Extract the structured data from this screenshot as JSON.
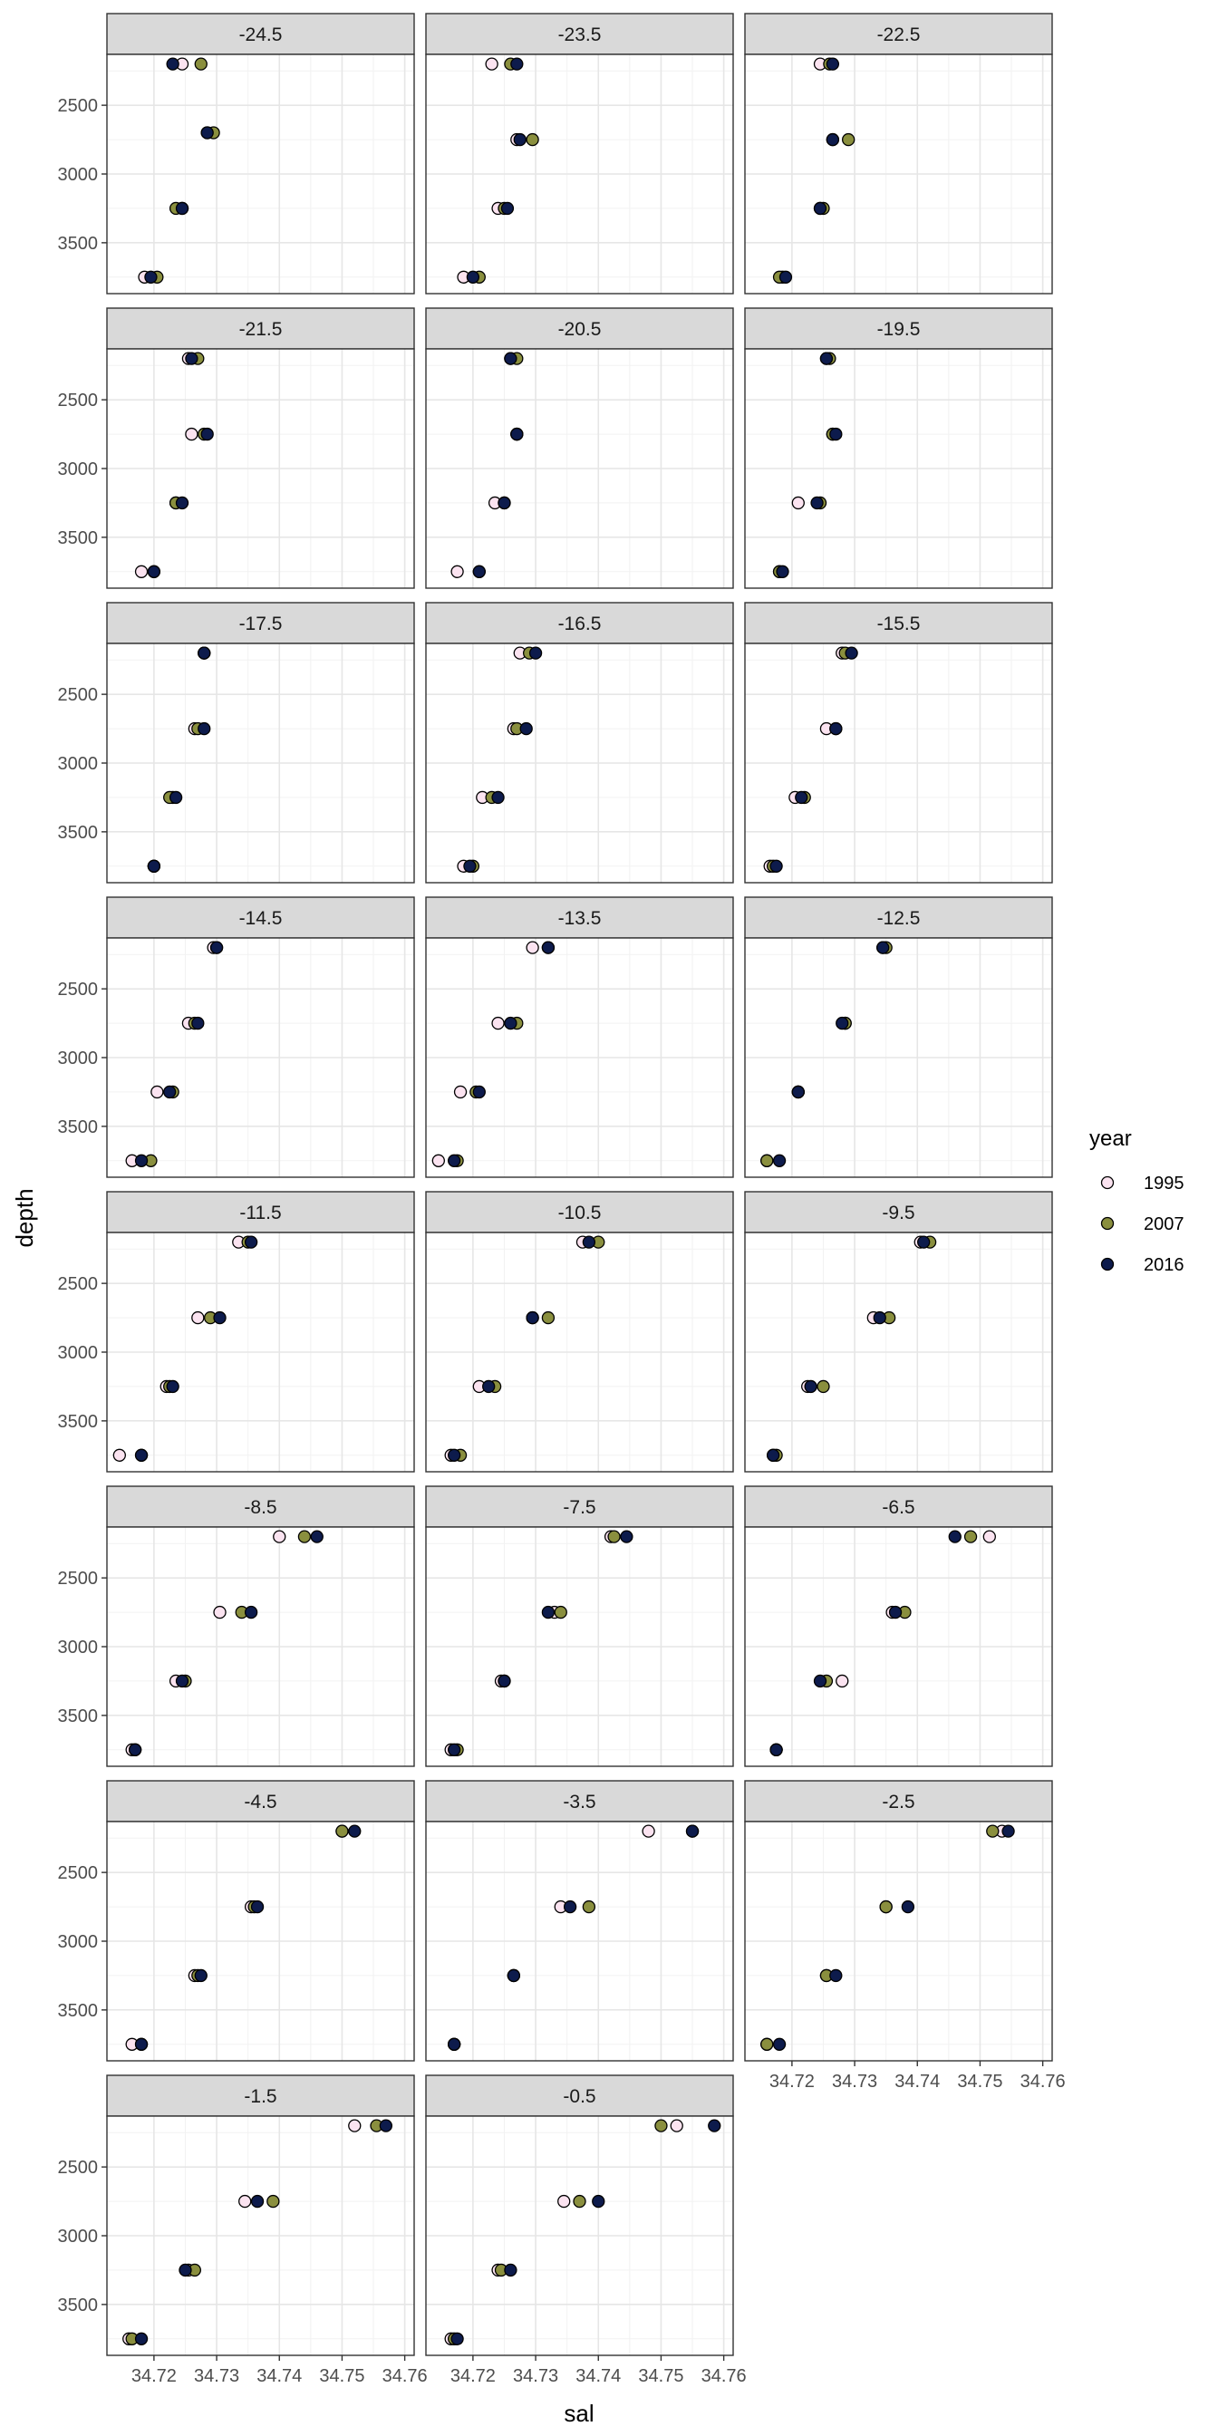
{
  "chart_data": {
    "type": "scatter",
    "layout": "facet_wrap",
    "ncol": 3,
    "xlabel": "sal",
    "ylabel": "depth",
    "xlim": [
      34.7125,
      34.7615
    ],
    "ylim": [
      3870,
      2130
    ],
    "y_reversed": true,
    "x_ticks": [
      34.72,
      34.73,
      34.74,
      34.75,
      34.76
    ],
    "y_ticks": [
      2500,
      3000,
      3500
    ],
    "grid": true,
    "legend": {
      "title": "year",
      "position": "right",
      "entries": [
        {
          "name": "1995",
          "color": "#fbe3f0"
        },
        {
          "name": "2007",
          "color": "#8a8f3e"
        },
        {
          "name": "2016",
          "color": "#0d1b4c"
        }
      ]
    },
    "series_order": [
      "1995",
      "2007",
      "2016"
    ],
    "panels": [
      {
        "title": "-24.5",
        "depths": [
          2200,
          2700,
          3250,
          3750
        ],
        "sal": {
          "1995": [
            34.7245,
            34.7285,
            34.7245,
            34.7185
          ],
          "2007": [
            34.7275,
            34.7295,
            34.7235,
            34.7205
          ],
          "2016": [
            34.723,
            34.7285,
            34.7245,
            34.7195
          ]
        }
      },
      {
        "title": "-23.5",
        "depths": [
          2200,
          2750,
          3250,
          3750
        ],
        "sal": {
          "1995": [
            34.723,
            34.727,
            34.724,
            34.7185
          ],
          "2007": [
            34.726,
            34.7295,
            34.725,
            34.721
          ],
          "2016": [
            34.727,
            34.7275,
            34.7255,
            34.72
          ]
        }
      },
      {
        "title": "-22.5",
        "depths": [
          2200,
          2750,
          3250,
          3750
        ],
        "sal": {
          "1995": [
            34.7245,
            34.7265,
            34.7245,
            34.7185
          ],
          "2007": [
            34.726,
            34.729,
            34.725,
            34.718
          ],
          "2016": [
            34.7265,
            34.7265,
            34.7245,
            34.719
          ]
        }
      },
      {
        "title": "-21.5",
        "depths": [
          2200,
          2750,
          3250,
          3750
        ],
        "sal": {
          "1995": [
            34.7255,
            34.726,
            34.7235,
            34.718
          ],
          "2007": [
            34.727,
            34.728,
            34.7235,
            34.72
          ],
          "2016": [
            34.726,
            34.7285,
            34.7245,
            34.72
          ]
        }
      },
      {
        "title": "-20.5",
        "depths": [
          2200,
          2750,
          3250,
          3750
        ],
        "sal": {
          "1995": [
            34.726,
            34.727,
            34.7235,
            34.7175
          ],
          "2007": [
            34.727,
            34.727,
            34.725,
            34.721
          ],
          "2016": [
            34.726,
            34.727,
            34.725,
            34.721
          ]
        }
      },
      {
        "title": "-19.5",
        "depths": [
          2200,
          2750,
          3250,
          3750
        ],
        "sal": {
          "1995": [
            34.7255,
            34.7265,
            34.721,
            34.718
          ],
          "2007": [
            34.726,
            34.7265,
            34.7245,
            34.718
          ],
          "2016": [
            34.7255,
            34.727,
            34.724,
            34.7185
          ]
        }
      },
      {
        "title": "-17.5",
        "depths": [
          2200,
          2750,
          3250,
          3750
        ],
        "sal": {
          "1995": [
            34.728,
            34.7265,
            34.723,
            34.72
          ],
          "2007": [
            34.728,
            34.727,
            34.7225,
            34.72
          ],
          "2016": [
            34.728,
            34.728,
            34.7235,
            34.72
          ]
        }
      },
      {
        "title": "-16.5",
        "depths": [
          2200,
          2750,
          3250,
          3750
        ],
        "sal": {
          "1995": [
            34.7275,
            34.7265,
            34.7215,
            34.7185
          ],
          "2007": [
            34.729,
            34.727,
            34.723,
            34.72
          ],
          "2016": [
            34.73,
            34.7285,
            34.724,
            34.7195
          ]
        }
      },
      {
        "title": "-15.5",
        "depths": [
          2200,
          2750,
          3250,
          3750
        ],
        "sal": {
          "1995": [
            34.728,
            34.7255,
            34.7205,
            34.7165
          ],
          "2007": [
            34.7285,
            34.727,
            34.722,
            34.717
          ],
          "2016": [
            34.7295,
            34.727,
            34.7215,
            34.7175
          ]
        }
      },
      {
        "title": "-14.5",
        "depths": [
          2200,
          2750,
          3250,
          3750
        ],
        "sal": {
          "1995": [
            34.7295,
            34.7255,
            34.7205,
            34.7165
          ],
          "2007": [
            34.73,
            34.7265,
            34.723,
            34.7195
          ],
          "2016": [
            34.73,
            34.727,
            34.7225,
            34.718
          ]
        }
      },
      {
        "title": "-13.5",
        "depths": [
          2200,
          2750,
          3250,
          3750
        ],
        "sal": {
          "1995": [
            34.7295,
            34.724,
            34.718,
            34.7145
          ],
          "2007": [
            34.732,
            34.727,
            34.7205,
            34.7175
          ],
          "2016": [
            34.732,
            34.726,
            34.721,
            34.717
          ]
        }
      },
      {
        "title": "-12.5",
        "depths": [
          2200,
          2750,
          3250,
          3750
        ],
        "sal": {
          "1995": [
            34.7345,
            34.7285,
            34.721,
            34.716
          ],
          "2007": [
            34.735,
            34.7285,
            34.721,
            34.716
          ],
          "2016": [
            34.7345,
            34.728,
            34.721,
            34.718
          ]
        }
      },
      {
        "title": "-11.5",
        "depths": [
          2200,
          2750,
          3250,
          3750
        ],
        "sal": {
          "1995": [
            34.7335,
            34.727,
            34.722,
            34.7145
          ],
          "2007": [
            34.735,
            34.729,
            34.7225,
            34.718
          ],
          "2016": [
            34.7355,
            34.7305,
            34.723,
            34.718
          ]
        }
      },
      {
        "title": "-10.5",
        "depths": [
          2200,
          2750,
          3250,
          3750
        ],
        "sal": {
          "1995": [
            34.7375,
            34.7295,
            34.721,
            34.7165
          ],
          "2007": [
            34.74,
            34.732,
            34.7235,
            34.718
          ],
          "2016": [
            34.7385,
            34.7295,
            34.7225,
            34.717
          ]
        }
      },
      {
        "title": "-9.5",
        "depths": [
          2200,
          2750,
          3250,
          3750
        ],
        "sal": {
          "1995": [
            34.7405,
            34.733,
            34.7225,
            34.717
          ],
          "2007": [
            34.742,
            34.7355,
            34.725,
            34.7175
          ],
          "2016": [
            34.741,
            34.734,
            34.723,
            34.717
          ]
        }
      },
      {
        "title": "-8.5",
        "depths": [
          2200,
          2750,
          3250,
          3750
        ],
        "sal": {
          "1995": [
            34.74,
            34.7305,
            34.7235,
            34.7165
          ],
          "2007": [
            34.744,
            34.734,
            34.725,
            34.717
          ],
          "2016": [
            34.746,
            34.7355,
            34.7245,
            34.717
          ]
        }
      },
      {
        "title": "-7.5",
        "depths": [
          2200,
          2750,
          3250,
          3750
        ],
        "sal": {
          "1995": [
            34.742,
            34.733,
            34.7245,
            34.7165
          ],
          "2007": [
            34.7425,
            34.734,
            34.725,
            34.7175
          ],
          "2016": [
            34.7445,
            34.732,
            34.725,
            34.717
          ]
        }
      },
      {
        "title": "-6.5",
        "depths": [
          2200,
          2750,
          3250,
          3750
        ],
        "sal": {
          "1995": [
            34.7515,
            34.736,
            34.728,
            34.7175
          ],
          "2007": [
            34.7485,
            34.738,
            34.7255,
            34.7175
          ],
          "2016": [
            34.746,
            34.7365,
            34.7245,
            34.7175
          ]
        }
      },
      {
        "title": "-4.5",
        "depths": [
          2200,
          2750,
          3250,
          3750
        ],
        "sal": {
          "1995": [
            34.75,
            34.7355,
            34.7265,
            34.7165
          ],
          "2007": [
            34.75,
            34.736,
            34.727,
            34.718
          ],
          "2016": [
            34.752,
            34.7365,
            34.7275,
            34.718
          ]
        }
      },
      {
        "title": "-3.5",
        "depths": [
          2200,
          2750,
          3250,
          3750
        ],
        "sal": {
          "1995": [
            34.748,
            34.734,
            34.7265,
            34.717
          ],
          "2007": [
            34.755,
            34.7385,
            34.7265,
            34.717
          ],
          "2016": [
            34.755,
            34.7355,
            34.7265,
            34.717
          ]
        }
      },
      {
        "title": "-2.5",
        "depths": [
          2200,
          2750,
          3250,
          3750
        ],
        "sal": {
          "1995": [
            34.7535,
            34.735,
            34.7255,
            34.716
          ],
          "2007": [
            34.752,
            34.735,
            34.7255,
            34.716
          ],
          "2016": [
            34.7545,
            34.7385,
            34.727,
            34.718
          ]
        }
      },
      {
        "title": "-1.5",
        "depths": [
          2200,
          2750,
          3250,
          3750
        ],
        "sal": {
          "1995": [
            34.752,
            34.7345,
            34.7255,
            34.716
          ],
          "2007": [
            34.7555,
            34.739,
            34.7265,
            34.7165
          ],
          "2016": [
            34.757,
            34.7365,
            34.725,
            34.718
          ]
        }
      },
      {
        "title": "-0.5",
        "depths": [
          2200,
          2750,
          3250,
          3750
        ],
        "sal": {
          "1995": [
            34.7525,
            34.7345,
            34.724,
            34.7165
          ],
          "2007": [
            34.75,
            34.737,
            34.7245,
            34.717
          ],
          "2016": [
            34.7585,
            34.74,
            34.726,
            34.7175
          ]
        }
      }
    ]
  }
}
